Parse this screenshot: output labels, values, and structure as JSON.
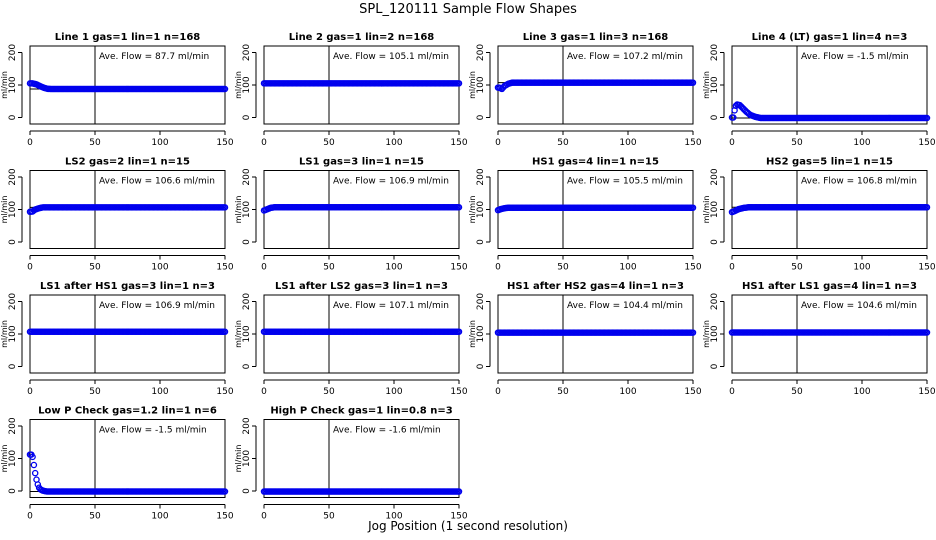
{
  "figure": {
    "title": "SPL_120111  Sample Flow Shapes",
    "xlabel": "Jog Position (1 second resolution)",
    "ylabel": "ml/min",
    "annotation_prefix": "Ave. Flow =",
    "annotation_unit": "ml/min"
  },
  "colors": {
    "points": "#0000ee",
    "axes": "#000000"
  },
  "chart_data": [
    {
      "type": "scatter",
      "title": "Line 1 gas=1 lin=1 n=168",
      "ave_flow": "87.7",
      "level": 87.7,
      "xlim": [
        0,
        150
      ],
      "ylim": [
        -20,
        220
      ],
      "x_ticks": [
        0,
        50,
        100,
        150
      ],
      "y_ticks": [
        0,
        100,
        200
      ],
      "vline_x": 50,
      "profile": [
        [
          0,
          105
        ],
        [
          2,
          105
        ],
        [
          5,
          102
        ],
        [
          8,
          96
        ],
        [
          11,
          91
        ],
        [
          14,
          88
        ],
        [
          17,
          87.7
        ],
        [
          150,
          87.7
        ]
      ]
    },
    {
      "type": "scatter",
      "title": "Line 2 gas=1 lin=2 n=168",
      "ave_flow": "105.1",
      "level": 105.1,
      "xlim": [
        0,
        150
      ],
      "ylim": [
        -20,
        220
      ],
      "x_ticks": [
        0,
        50,
        100,
        150
      ],
      "y_ticks": [
        0,
        100,
        200
      ],
      "vline_x": 50,
      "profile": [
        [
          0,
          105.1
        ],
        [
          150,
          105.1
        ]
      ]
    },
    {
      "type": "scatter",
      "title": "Line 3 gas=1 lin=3 n=168",
      "ave_flow": "107.2",
      "level": 107.2,
      "xlim": [
        0,
        150
      ],
      "ylim": [
        -20,
        220
      ],
      "x_ticks": [
        0,
        50,
        100,
        150
      ],
      "y_ticks": [
        0,
        100,
        200
      ],
      "vline_x": 50,
      "profile": [
        [
          1,
          92
        ],
        [
          3,
          88
        ],
        [
          5,
          97
        ],
        [
          8,
          104
        ],
        [
          11,
          107.2
        ],
        [
          150,
          107.2
        ]
      ]
    },
    {
      "type": "scatter",
      "title": "Line 4 (LT) gas=1 lin=4 n=3",
      "ave_flow": "-1.5",
      "level": -1.5,
      "xlim": [
        0,
        150
      ],
      "ylim": [
        -20,
        220
      ],
      "x_ticks": [
        0,
        50,
        100,
        150
      ],
      "y_ticks": [
        0,
        100,
        200
      ],
      "vline_x": 50,
      "profile": [
        [
          1,
          0
        ],
        [
          2,
          22
        ],
        [
          3,
          36
        ],
        [
          4,
          40
        ],
        [
          6,
          38
        ],
        [
          8,
          30
        ],
        [
          11,
          18
        ],
        [
          14,
          8
        ],
        [
          18,
          2
        ],
        [
          22,
          -1.5
        ],
        [
          150,
          -1.5
        ]
      ]
    },
    {
      "type": "scatter",
      "title": "LS2 gas=2 lin=1 n=15",
      "ave_flow": "106.6",
      "level": 106.6,
      "xlim": [
        0,
        150
      ],
      "ylim": [
        -20,
        220
      ],
      "x_ticks": [
        0,
        50,
        100,
        150
      ],
      "y_ticks": [
        0,
        100,
        200
      ],
      "vline_x": 50,
      "profile": [
        [
          0,
          93
        ],
        [
          2,
          94
        ],
        [
          4,
          100
        ],
        [
          7,
          104
        ],
        [
          10,
          106.6
        ],
        [
          150,
          106.6
        ]
      ]
    },
    {
      "type": "scatter",
      "title": "LS1 gas=3 lin=1 n=15",
      "ave_flow": "106.9",
      "level": 106.9,
      "xlim": [
        0,
        150
      ],
      "ylim": [
        -20,
        220
      ],
      "x_ticks": [
        0,
        50,
        100,
        150
      ],
      "y_ticks": [
        0,
        100,
        200
      ],
      "vline_x": 50,
      "profile": [
        [
          0,
          97
        ],
        [
          2,
          100
        ],
        [
          5,
          105
        ],
        [
          8,
          106.9
        ],
        [
          150,
          106.9
        ]
      ]
    },
    {
      "type": "scatter",
      "title": "HS1 gas=4 lin=1 n=15",
      "ave_flow": "105.5",
      "level": 105.5,
      "xlim": [
        0,
        150
      ],
      "ylim": [
        -20,
        220
      ],
      "x_ticks": [
        0,
        50,
        100,
        150
      ],
      "y_ticks": [
        0,
        100,
        200
      ],
      "vline_x": 50,
      "profile": [
        [
          0,
          98
        ],
        [
          2,
          101
        ],
        [
          5,
          104
        ],
        [
          8,
          105.5
        ],
        [
          150,
          105.5
        ]
      ]
    },
    {
      "type": "scatter",
      "title": "HS2 gas=5 lin=1 n=15",
      "ave_flow": "106.8",
      "level": 106.8,
      "xlim": [
        0,
        150
      ],
      "ylim": [
        -20,
        220
      ],
      "x_ticks": [
        0,
        50,
        100,
        150
      ],
      "y_ticks": [
        0,
        100,
        200
      ],
      "vline_x": 50,
      "profile": [
        [
          0,
          92
        ],
        [
          2,
          95
        ],
        [
          5,
          101
        ],
        [
          9,
          105
        ],
        [
          13,
          106.8
        ],
        [
          150,
          106.8
        ]
      ]
    },
    {
      "type": "scatter",
      "title": "LS1 after HS1 gas=3 lin=1 n=3",
      "ave_flow": "106.9",
      "level": 106.9,
      "xlim": [
        0,
        150
      ],
      "ylim": [
        -20,
        220
      ],
      "x_ticks": [
        0,
        50,
        100,
        150
      ],
      "y_ticks": [
        0,
        100,
        200
      ],
      "vline_x": 50,
      "profile": [
        [
          0,
          106.9
        ],
        [
          150,
          106.9
        ]
      ]
    },
    {
      "type": "scatter",
      "title": "LS1 after LS2 gas=3 lin=1 n=3",
      "ave_flow": "107.1",
      "level": 107.1,
      "xlim": [
        0,
        150
      ],
      "ylim": [
        -20,
        220
      ],
      "x_ticks": [
        0,
        50,
        100,
        150
      ],
      "y_ticks": [
        0,
        100,
        200
      ],
      "vline_x": 50,
      "profile": [
        [
          0,
          107.1
        ],
        [
          150,
          107.1
        ]
      ]
    },
    {
      "type": "scatter",
      "title": "HS1 after HS2 gas=4 lin=1 n=3",
      "ave_flow": "104.4",
      "level": 104.4,
      "xlim": [
        0,
        150
      ],
      "ylim": [
        -20,
        220
      ],
      "x_ticks": [
        0,
        50,
        100,
        150
      ],
      "y_ticks": [
        0,
        100,
        200
      ],
      "vline_x": 50,
      "profile": [
        [
          0,
          104.4
        ],
        [
          150,
          104.4
        ]
      ]
    },
    {
      "type": "scatter",
      "title": "HS1 after LS1 gas=4 lin=1 n=3",
      "ave_flow": "104.6",
      "level": 104.6,
      "xlim": [
        0,
        150
      ],
      "ylim": [
        -20,
        220
      ],
      "x_ticks": [
        0,
        50,
        100,
        150
      ],
      "y_ticks": [
        0,
        100,
        200
      ],
      "vline_x": 50,
      "profile": [
        [
          0,
          104.6
        ],
        [
          150,
          104.6
        ]
      ]
    },
    {
      "type": "scatter",
      "title": "Low P Check gas=1.2 lin=1 n=6",
      "ave_flow": "-1.5",
      "level": -1.5,
      "xlim": [
        0,
        150
      ],
      "ylim": [
        -20,
        220
      ],
      "x_ticks": [
        0,
        50,
        100,
        150
      ],
      "y_ticks": [
        0,
        100,
        200
      ],
      "vline_x": 50,
      "profile": [
        [
          1,
          112
        ],
        [
          2,
          105
        ],
        [
          3,
          80
        ],
        [
          4,
          55
        ],
        [
          5,
          35
        ],
        [
          6,
          20
        ],
        [
          7,
          10
        ],
        [
          8,
          5
        ],
        [
          10,
          1
        ],
        [
          13,
          -1.5
        ],
        [
          150,
          -1.5
        ]
      ]
    },
    {
      "type": "scatter",
      "title": "High P Check gas=1 lin=0.8 n=3",
      "ave_flow": "-1.6",
      "level": -1.6,
      "xlim": [
        0,
        150
      ],
      "ylim": [
        -20,
        220
      ],
      "x_ticks": [
        0,
        50,
        100,
        150
      ],
      "y_ticks": [
        0,
        100,
        200
      ],
      "vline_x": 50,
      "profile": [
        [
          0,
          -1.6
        ],
        [
          150,
          -1.6
        ]
      ]
    }
  ]
}
